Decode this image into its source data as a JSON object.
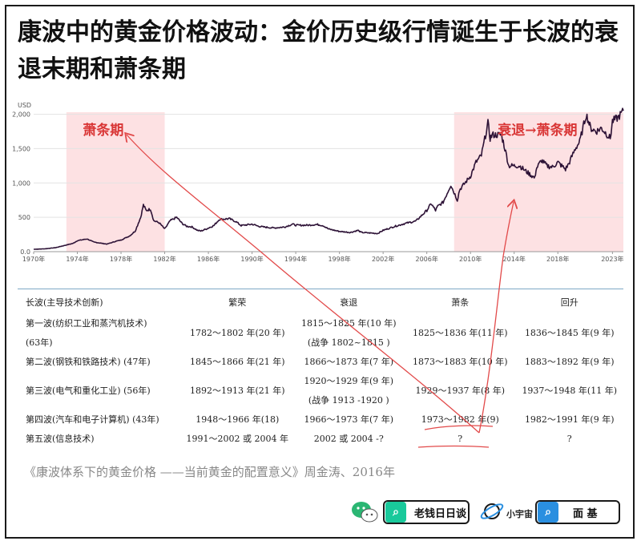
{
  "title": "康波中的黄金价格波动：金价历史级行情诞生于长波的衰退末期和萧条期",
  "chart_data": {
    "type": "line",
    "ylabel": "USD",
    "ylim": [
      0,
      2100
    ],
    "y_ticks": [
      "0.0",
      "500",
      "1,000",
      "1,500",
      "2,000"
    ],
    "y_tick_values": [
      0,
      500,
      1000,
      1500,
      2000
    ],
    "x_ticks": [
      "1970年",
      "1974年",
      "1978年",
      "1982年",
      "1986年",
      "1990年",
      "1994年",
      "1998年",
      "2002年",
      "2006年",
      "2010年",
      "2014年",
      "2018年",
      "2023年"
    ],
    "x_tick_years": [
      1970,
      1974,
      1978,
      1982,
      1986,
      1990,
      1994,
      1998,
      2002,
      2006,
      2010,
      2014,
      2018,
      2023
    ],
    "xlim": [
      1970,
      2024
    ],
    "line_color": "#2d1236",
    "series": [
      {
        "x": [
          1970,
          1971,
          1972,
          1973,
          1973.6,
          1974,
          1974.9,
          1975.5,
          1976.7,
          1977.5,
          1978,
          1978.8,
          1979.3,
          1979.8,
          1980.05,
          1980.3,
          1980.7,
          1981,
          1981.5,
          1982,
          1982.5,
          1983.1,
          1983.6,
          1984,
          1984.5,
          1985,
          1985.3,
          1985.8,
          1986.5,
          1987,
          1987.9,
          1988.5,
          1989,
          1990,
          1990.6,
          1991,
          1992,
          1993,
          1993.7,
          1994,
          1995,
          1996,
          1996.5,
          1997,
          1998,
          1999,
          1999.7,
          2000,
          2001,
          2001.5,
          2002,
          2003,
          2004,
          2005,
          2006,
          2006.4,
          2006.8,
          2007,
          2007.5,
          2008,
          2008.2,
          2008.8,
          2009,
          2009.5,
          2010,
          2010.5,
          2011,
          2011.6,
          2011.8,
          2012,
          2012.8,
          2013,
          2013.3,
          2013.5,
          2014,
          2014.5,
          2015,
          2015.9,
          2016,
          2016.5,
          2017,
          2017.5,
          2018,
          2018.7,
          2019,
          2019.6,
          2020,
          2020.6,
          2021,
          2021.5,
          2022,
          2022.8,
          2023,
          2023.5,
          2024
        ],
        "y": [
          35,
          41,
          58,
          97,
          120,
          160,
          185,
          140,
          110,
          150,
          170,
          230,
          300,
          500,
          680,
          600,
          620,
          450,
          420,
          330,
          450,
          500,
          410,
          370,
          360,
          310,
          300,
          330,
          380,
          470,
          480,
          440,
          380,
          400,
          370,
          360,
          345,
          360,
          400,
          385,
          385,
          395,
          380,
          330,
          295,
          280,
          310,
          280,
          270,
          265,
          310,
          365,
          410,
          445,
          600,
          700,
          600,
          660,
          720,
          900,
          970,
          750,
          900,
          1000,
          1100,
          1300,
          1400,
          1870,
          1650,
          1700,
          1700,
          1600,
          1400,
          1250,
          1250,
          1250,
          1180,
          1070,
          1200,
          1330,
          1250,
          1230,
          1300,
          1200,
          1280,
          1500,
          1600,
          2000,
          1800,
          1750,
          1800,
          1650,
          1900,
          1950,
          2050
        ]
      }
    ],
    "shaded_ranges": [
      [
        1973,
        1982
      ],
      [
        2008.5,
        2024
      ]
    ],
    "shaded_color": "#fde1e3",
    "annotations": [
      "萧条期",
      "衰退→萧条期"
    ],
    "annotation_color": "#d93636"
  },
  "table": {
    "headers": [
      "长波(主导技术创新)",
      "繁荣",
      "衰退",
      "萧条",
      "回升"
    ],
    "rows": [
      [
        [
          "第一波(纺织工业和蒸汽机技术)",
          "(63年)"
        ],
        [
          "1782～1802 年(20 年)"
        ],
        [
          "1815～1825 年(10 年)",
          "(战争 1802~1815 )"
        ],
        [
          "1825～1836 年(11 年)"
        ],
        [
          "1836～1845 年(9 年)"
        ]
      ],
      [
        [
          "第二波(钢铁和铁路技术) (47年)"
        ],
        [
          "1845～1866 年(21 年)"
        ],
        [
          "1866～1873 年(7 年)"
        ],
        [
          "1873～1883 年(10 年)"
        ],
        [
          "1883～1892 年(9 年)"
        ]
      ],
      [
        [
          "第三波(电气和重化工业) (56年)"
        ],
        [
          "1892～1913 年(21 年)"
        ],
        [
          "1920～1929 年(9 年)",
          "(战争 1913 -1920 )"
        ],
        [
          "1929～1937 年(8 年)"
        ],
        [
          "1937～1948 年(11 年)"
        ]
      ],
      [
        [
          "第四波(汽车和电子计算机) (43年)"
        ],
        [
          "1948～1966 年(18)"
        ],
        [
          "1966～1973 年(7 年)"
        ],
        [
          "1973～1982 年(9)"
        ],
        [
          "1982～1991 年(9 年)"
        ]
      ],
      [
        [
          "第五波(信息技术)"
        ],
        [
          "1991～2002 或 2004 年"
        ],
        [
          "2002 或 2004 -?"
        ],
        [
          "?"
        ],
        [
          "?"
        ]
      ]
    ]
  },
  "caption": "《康波体系下的黄金价格 ——当前黄金的配置意义》周金涛、2016年",
  "brand": {
    "box1_label": "老钱日日谈",
    "box1_color": "#19c99b",
    "planet_label": "小宇宙",
    "box2_label": "面 基",
    "box2_color": "#2a8fe0",
    "chat_color": "#2bb673"
  }
}
